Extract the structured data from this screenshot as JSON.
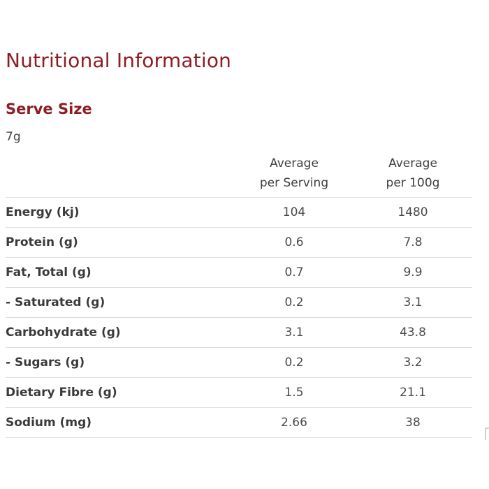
{
  "title": "Nutritional Information",
  "serve": {
    "label": "Serve Size",
    "value": "7g"
  },
  "table": {
    "headers": {
      "serving_line1": "Average",
      "serving_line2": "per Serving",
      "per100_line1": "Average",
      "per100_line2": "per 100g"
    },
    "rows": [
      {
        "name": "Energy (kj)",
        "per_serving": "104",
        "per_100g": "1480"
      },
      {
        "name": "Protein (g)",
        "per_serving": "0.6",
        "per_100g": "7.8"
      },
      {
        "name": "Fat, Total (g)",
        "per_serving": "0.7",
        "per_100g": "9.9"
      },
      {
        "name": "- Saturated (g)",
        "per_serving": "0.2",
        "per_100g": "3.1"
      },
      {
        "name": "Carbohydrate (g)",
        "per_serving": "3.1",
        "per_100g": "43.8"
      },
      {
        "name": "- Sugars (g)",
        "per_serving": "0.2",
        "per_100g": "3.2"
      },
      {
        "name": "Dietary Fibre (g)",
        "per_serving": "1.5",
        "per_100g": "21.1"
      },
      {
        "name": "Sodium (mg)",
        "per_serving": "2.66",
        "per_100g": "38"
      }
    ]
  },
  "colors": {
    "heading": "#8c1d22",
    "text": "#3a3a3a",
    "divider": "#dcdcdc"
  }
}
